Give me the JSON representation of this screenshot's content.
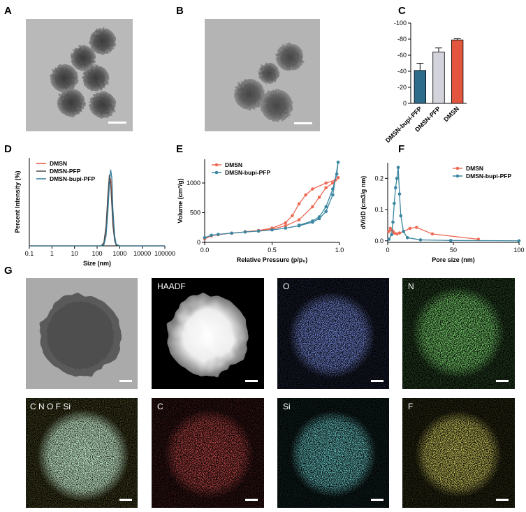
{
  "panel_labels": [
    "A",
    "B",
    "C",
    "D",
    "E",
    "F",
    "G"
  ],
  "image_labels": [
    "HAADF",
    "O",
    "N",
    "C N O F Si",
    "C",
    "Si",
    "F"
  ],
  "chart_data": [
    {
      "type": "bar",
      "categories": [
        "DMSN-bupi-PFP",
        "DMSN-PFP",
        "DMSN"
      ],
      "values": [
        -41,
        -64,
        -79
      ],
      "errors": [
        9,
        5,
        1.5
      ],
      "colors": [
        "#2e6c8c",
        "#d3d3db",
        "#e2553e"
      ],
      "ylim": [
        0,
        -100
      ],
      "yticks": [
        -100,
        -80,
        -60,
        -40,
        -20,
        0
      ]
    },
    {
      "type": "line",
      "x_label": "Size  (nm)",
      "y_label": "Percent Intensity (%)",
      "xscale": "log",
      "xlim": [
        0.1,
        100000
      ],
      "xticks": [
        0.1,
        1,
        10,
        100,
        1000,
        10000,
        100000
      ],
      "ylim": [
        0,
        26
      ],
      "legend": "top-left",
      "markers": false,
      "x": [
        0.1,
        100,
        150,
        200,
        250,
        300,
        350,
        400,
        450,
        500,
        600,
        700,
        1000,
        100000
      ],
      "series": [
        {
          "name": "DMSN",
          "color": "#e2553e",
          "values": [
            0,
            0,
            0,
            0.5,
            4,
            12,
            19,
            20,
            15,
            8,
            2,
            0.3,
            0,
            0
          ]
        },
        {
          "name": "DMSN-PFP",
          "color": "#4a4a4a",
          "values": [
            0,
            0,
            0,
            1,
            6,
            15,
            21,
            18,
            12,
            6,
            1.5,
            0.2,
            0,
            0
          ]
        },
        {
          "name": "DMSN-bupi-PFP",
          "color": "#2e7c9c",
          "values": [
            0,
            0,
            0,
            0.3,
            3,
            10,
            18,
            22.5,
            20,
            11,
            3,
            0.5,
            0,
            0
          ]
        }
      ]
    },
    {
      "type": "line",
      "x_label": "Relative Pressure (p/p₀)",
      "y_label": "Volume (cm³/g)",
      "xlim": [
        0,
        1
      ],
      "xticks": [
        {
          "value": 0,
          "label": "0.0"
        },
        0.5,
        {
          "value": 1,
          "label": "1.0"
        }
      ],
      "ylim": [
        0,
        1400
      ],
      "yticks": [
        0,
        500,
        1000
      ],
      "legend": "top-left",
      "markers": true,
      "series": [
        {
          "name": "DMSN",
          "color": "#ee6a55",
          "x": [
            0,
            0.05,
            0.1,
            0.2,
            0.3,
            0.4,
            0.5,
            0.6,
            0.7,
            0.8,
            0.85,
            0.9,
            0.95,
            0.99,
            0.97,
            0.9,
            0.8,
            0.75,
            0.7,
            0.65,
            0.6,
            0.5,
            0.4,
            0.3
          ],
          "values": [
            60,
            110,
            130,
            155,
            175,
            195,
            225,
            280,
            380,
            600,
            760,
            920,
            1000,
            1090,
            1050,
            1000,
            900,
            800,
            650,
            450,
            330,
            240,
            200,
            180
          ]
        },
        {
          "name": "DMSN-bupi-PFP",
          "color": "#3a86a0",
          "x": [
            0,
            0.05,
            0.1,
            0.2,
            0.3,
            0.4,
            0.5,
            0.6,
            0.7,
            0.8,
            0.85,
            0.9,
            0.95,
            0.99,
            0.98,
            0.95,
            0.9,
            0.85,
            0.8,
            0.7
          ],
          "values": [
            80,
            120,
            135,
            155,
            175,
            190,
            210,
            240,
            280,
            340,
            400,
            520,
            800,
            1350,
            1150,
            900,
            600,
            430,
            360,
            290
          ]
        }
      ]
    },
    {
      "type": "line",
      "x_label": "Pore size (nm)",
      "y_label": "dV/dD (cm3/g nm)",
      "xlim": [
        0,
        100
      ],
      "xticks": [
        0,
        50,
        100
      ],
      "ylim": [
        -0.005,
        0.25
      ],
      "yticks": [
        {
          "value": 0,
          "label": "0.0"
        },
        0.1,
        0.2
      ],
      "legend": "top-right",
      "markers": true,
      "series": [
        {
          "name": "DMSN",
          "color": "#ee6a55",
          "x": [
            1,
            2,
            3,
            4,
            5,
            7,
            9,
            12,
            17,
            22,
            34,
            69
          ],
          "values": [
            0.03,
            0.04,
            0.035,
            0.03,
            0.025,
            0.022,
            0.025,
            0.03,
            0.04,
            0.043,
            0.022,
            0.005
          ]
        },
        {
          "name": "DMSN-bupi-PFP",
          "color": "#3a86a0",
          "x": [
            1,
            3,
            4,
            5,
            6,
            7,
            8,
            9,
            10,
            12,
            15,
            25,
            48,
            100
          ],
          "values": [
            0.005,
            0.02,
            0.06,
            0.12,
            0.17,
            0.2,
            0.235,
            0.15,
            0.08,
            0.03,
            0.01,
            0.003,
            0.001,
            0
          ]
        }
      ]
    }
  ]
}
